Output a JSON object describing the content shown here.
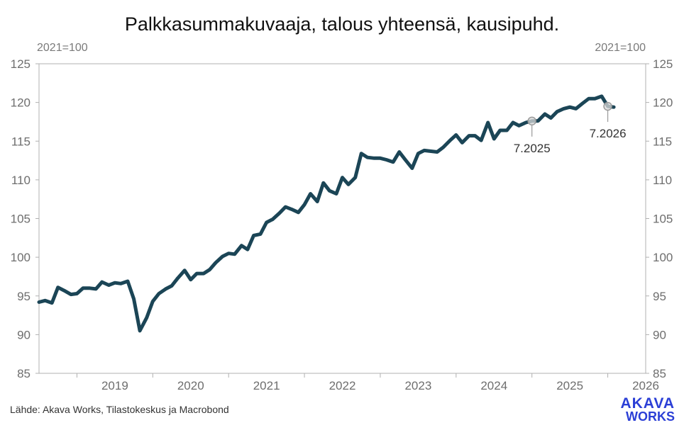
{
  "colors": {
    "line": "#1b4556",
    "marker": "#9a9a9a",
    "logo": "#2b3fd6",
    "axis": "#b0b0b0"
  },
  "logo": {
    "line1": "AKAVA",
    "line2": "WORKS"
  },
  "source": "Lähde: Akava Works, Tilastokeskus ja Macrobond",
  "chart_data": {
    "type": "line",
    "title": "Palkkasummakuvaaja, talous yhteensä, kausipuhd.",
    "unit_left": "2021=100",
    "unit_right": "2021=100",
    "ylim": [
      85,
      125
    ],
    "yticks": [
      85,
      90,
      95,
      100,
      105,
      110,
      115,
      120,
      125
    ],
    "grid": false,
    "xlim": [
      2018.5,
      2026.5
    ],
    "x_tick_labels": [
      "2019",
      "2020",
      "2021",
      "2022",
      "2023",
      "2024",
      "2025",
      "2026"
    ],
    "series": [
      {
        "x": [
          2018.5,
          2018.58,
          2018.67,
          2018.75,
          2018.83,
          2018.92,
          2019.0,
          2019.08,
          2019.17,
          2019.25,
          2019.33,
          2019.42,
          2019.5,
          2019.58,
          2019.67,
          2019.75,
          2019.83,
          2019.92,
          2020.0,
          2020.08,
          2020.17,
          2020.25,
          2020.33,
          2020.42,
          2020.5,
          2020.58,
          2020.67,
          2020.75,
          2020.83,
          2020.92,
          2021.0,
          2021.08,
          2021.17,
          2021.25,
          2021.33,
          2021.42,
          2021.5,
          2021.58,
          2021.67,
          2021.75,
          2021.83,
          2021.92,
          2022.0,
          2022.08,
          2022.17,
          2022.25,
          2022.33,
          2022.42,
          2022.5,
          2022.58,
          2022.67,
          2022.75,
          2022.83,
          2022.92,
          2023.0,
          2023.08,
          2023.17,
          2023.25,
          2023.33,
          2023.42,
          2023.5,
          2023.58,
          2023.67,
          2023.75,
          2023.83,
          2023.92,
          2024.0,
          2024.08,
          2024.17,
          2024.25,
          2024.33,
          2024.42,
          2024.5,
          2024.58,
          2024.67,
          2024.75,
          2024.83,
          2024.92,
          2025.0,
          2025.08,
          2025.17,
          2025.25,
          2025.33,
          2025.42,
          2025.5,
          2025.58,
          2025.67,
          2025.75,
          2025.83,
          2025.92,
          2026.0,
          2026.08
        ],
        "values": [
          94.2,
          94.4,
          94.1,
          96.1,
          95.7,
          95.2,
          95.3,
          96.0,
          96.0,
          95.9,
          96.8,
          96.4,
          96.7,
          96.6,
          96.9,
          94.6,
          90.5,
          92.2,
          94.3,
          95.3,
          95.9,
          96.3,
          97.3,
          98.3,
          97.1,
          97.9,
          97.9,
          98.4,
          99.3,
          100.1,
          100.5,
          100.4,
          101.5,
          101.0,
          102.8,
          103.0,
          104.5,
          104.9,
          105.7,
          106.5,
          106.2,
          105.8,
          106.8,
          108.2,
          107.2,
          109.6,
          108.6,
          108.2,
          110.3,
          109.4,
          110.3,
          113.4,
          112.9,
          112.8,
          112.8,
          112.6,
          112.3,
          113.6,
          112.6,
          111.5,
          113.4,
          113.8,
          113.7,
          113.6,
          114.2,
          115.1,
          115.8,
          114.8,
          115.7,
          115.7,
          115.1,
          117.4,
          115.3,
          116.4,
          116.4,
          117.4,
          117.0,
          117.4,
          117.6,
          117.6,
          118.5,
          118.0,
          118.8,
          119.2,
          119.4,
          119.2,
          119.9,
          120.5,
          120.5,
          120.8,
          119.5,
          119.4
        ]
      }
    ],
    "markers": [
      {
        "x": 2025.0,
        "y": 117.6,
        "label": "7.2025"
      },
      {
        "x": 2026.0,
        "y": 119.5,
        "label": "7.2026"
      }
    ]
  }
}
